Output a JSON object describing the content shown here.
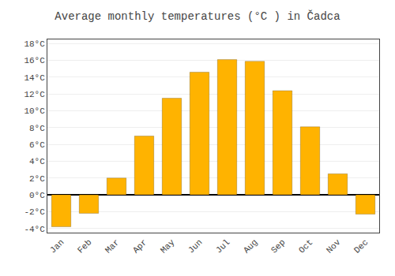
{
  "chart_data": {
    "type": "bar",
    "title": "Average monthly temperatures (°C ) in Čadca",
    "categories": [
      "Jan",
      "Feb",
      "Mar",
      "Apr",
      "May",
      "Jun",
      "Jul",
      "Aug",
      "Sep",
      "Oct",
      "Nov",
      "Dec"
    ],
    "values": [
      -3.8,
      -2.2,
      2.0,
      7.0,
      11.5,
      14.6,
      16.1,
      15.9,
      12.4,
      8.1,
      2.5,
      -2.3
    ],
    "color": "#FFB300",
    "ylim": [
      -4.5,
      18.5
    ],
    "yticks": [
      {
        "value": -4,
        "label": "-4°C"
      },
      {
        "value": -2,
        "label": "-2°C"
      },
      {
        "value": 0,
        "label": "0°C"
      },
      {
        "value": 2,
        "label": "2°C"
      },
      {
        "value": 4,
        "label": "4°C"
      },
      {
        "value": 6,
        "label": "6°C"
      },
      {
        "value": 8,
        "label": "8°C"
      },
      {
        "value": 10,
        "label": "10°C"
      },
      {
        "value": 12,
        "label": "12°C"
      },
      {
        "value": 14,
        "label": "14°C"
      },
      {
        "value": 16,
        "label": "16°C"
      },
      {
        "value": 18,
        "label": "18°C"
      }
    ],
    "grid": true
  }
}
